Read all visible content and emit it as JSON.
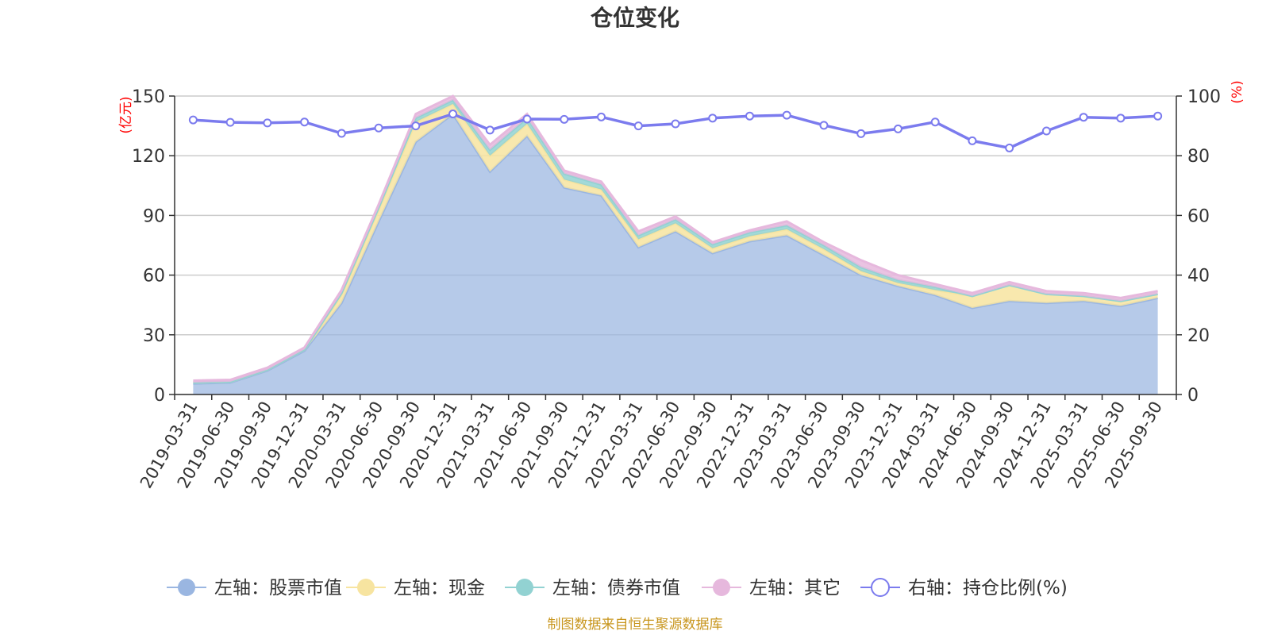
{
  "chart_data": {
    "type": "area",
    "title": "仓位变化",
    "source": "制图数据来自恒生聚源数据库",
    "y_left_unit": "(亿元)",
    "y_right_unit": "(%)",
    "y_left_ticks": [
      "0",
      "30",
      "60",
      "90",
      "120",
      "150"
    ],
    "y_right_ticks": [
      "0",
      "20",
      "40",
      "60",
      "80",
      "100"
    ],
    "ylim_left": [
      0,
      150
    ],
    "ylim_right": [
      0,
      100
    ],
    "grid": true,
    "legend_position": "bottom",
    "categories": [
      "2019-03-31",
      "2019-06-30",
      "2019-09-30",
      "2019-12-31",
      "2020-03-31",
      "2020-06-30",
      "2020-09-30",
      "2020-12-31",
      "2021-03-31",
      "2021-06-30",
      "2021-09-30",
      "2021-12-31",
      "2022-03-31",
      "2022-06-30",
      "2022-09-30",
      "2022-12-31",
      "2023-03-31",
      "2023-06-30",
      "2023-09-30",
      "2023-12-31",
      "2024-03-31",
      "2024-06-30",
      "2024-09-30",
      "2024-12-31",
      "2025-03-31",
      "2025-06-30",
      "2025-09-30"
    ],
    "stacked_series": [
      {
        "name": "左轴：股票市值",
        "axis": "left",
        "color": "#9ab6e1",
        "values": [
          5.5,
          6.0,
          12.0,
          22.0,
          46.0,
          87.0,
          127.0,
          141.0,
          112.0,
          130.0,
          104.0,
          100.0,
          74.0,
          82.0,
          71.0,
          77.0,
          80.0,
          70.0,
          60.0,
          54.5,
          50.0,
          43.5,
          47.0,
          46.0,
          47.0,
          44.5,
          48.5
        ]
      },
      {
        "name": "左轴：现金",
        "axis": "left",
        "color": "#f7e4a0",
        "values": [
          0.5,
          0.4,
          0.5,
          0.6,
          4.0,
          6.0,
          10.0,
          5.0,
          8.0,
          6.0,
          4.0,
          3.0,
          4.0,
          4.0,
          2.5,
          2.5,
          3.0,
          3.0,
          2.0,
          1.5,
          2.5,
          6.0,
          8.0,
          4.5,
          2.5,
          2.5,
          2.0
        ]
      },
      {
        "name": "左轴：债券市值",
        "axis": "left",
        "color": "#92d2d2",
        "values": [
          0,
          0,
          0,
          0,
          1.0,
          1.0,
          2.0,
          2.0,
          3.0,
          3.0,
          3.0,
          2.5,
          2.0,
          2.0,
          2.0,
          2.0,
          2.0,
          2.0,
          2.0,
          1.5,
          1.5,
          0,
          0,
          0,
          0,
          0,
          0
        ]
      },
      {
        "name": "左轴：其它",
        "axis": "left",
        "color": "#e6b8dd",
        "values": [
          1.0,
          1.0,
          1.0,
          1.0,
          1.5,
          1.5,
          2.0,
          2.0,
          2.5,
          2.0,
          1.5,
          1.5,
          2.0,
          1.5,
          1.0,
          1.0,
          2.0,
          1.5,
          3.5,
          2.5,
          1.5,
          1.5,
          1.5,
          1.5,
          1.5,
          1.5,
          1.5
        ]
      }
    ],
    "line_series": {
      "name": "右轴：持仓比例(%)",
      "axis": "right",
      "color": "#7b7bee",
      "values": [
        92.0,
        91.2,
        91.0,
        91.3,
        87.5,
        89.3,
        90.0,
        94.0,
        88.6,
        92.3,
        92.2,
        93.0,
        90.0,
        90.7,
        92.6,
        93.3,
        93.6,
        90.2,
        87.4,
        89.0,
        91.3,
        85.0,
        82.6,
        88.3,
        92.9,
        92.6,
        93.3
      ]
    }
  }
}
